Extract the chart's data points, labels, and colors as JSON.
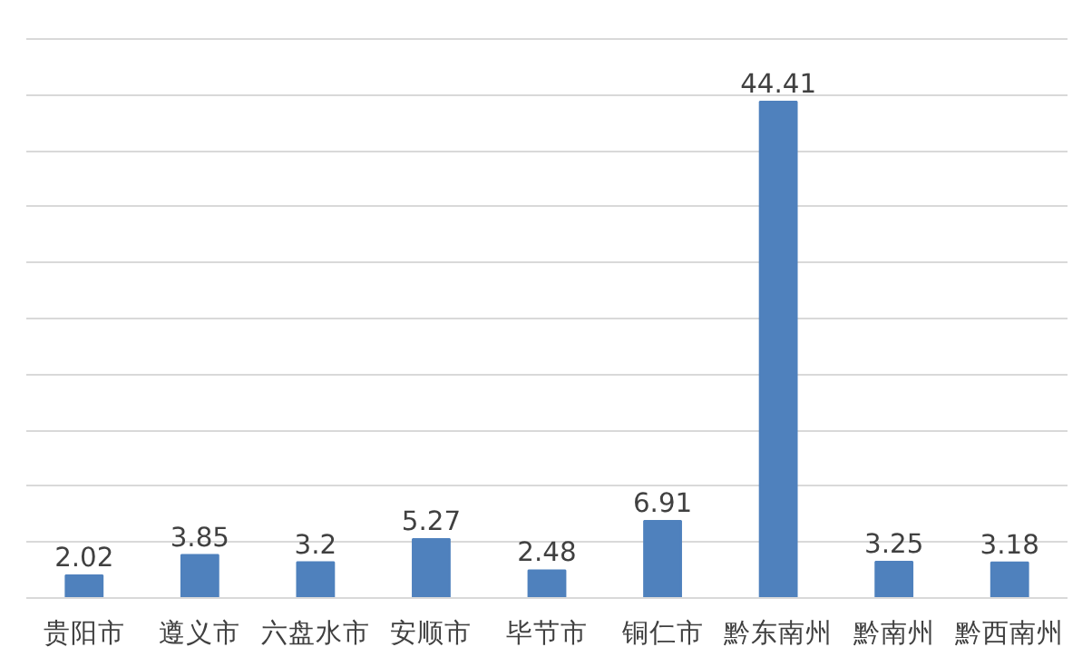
{
  "chart_data": {
    "type": "bar",
    "categories": [
      "贵阳市",
      "遵义市",
      "六盘水市",
      "安顺市",
      "毕节市",
      "铜仁市",
      "黔东南州",
      "黔南州",
      "黔西南州"
    ],
    "values": [
      2.02,
      3.85,
      3.2,
      5.27,
      2.48,
      6.91,
      44.41,
      3.25,
      3.18
    ],
    "color": "#4f81bd",
    "yticks": [
      {
        "value": 0,
        "label": null
      },
      {
        "value": 5,
        "label": null
      },
      {
        "value": 10,
        "label": null
      },
      {
        "value": 15,
        "label": null
      },
      {
        "value": 20,
        "label": null
      },
      {
        "value": 25,
        "label": null
      },
      {
        "value": 30,
        "label": null
      },
      {
        "value": 35,
        "label": null
      },
      {
        "value": 40,
        "label": null
      },
      {
        "value": 45,
        "label": null
      },
      {
        "value": 50,
        "label": null
      }
    ],
    "grid": "y",
    "tick_labels": "x",
    "data_labels": true
  }
}
